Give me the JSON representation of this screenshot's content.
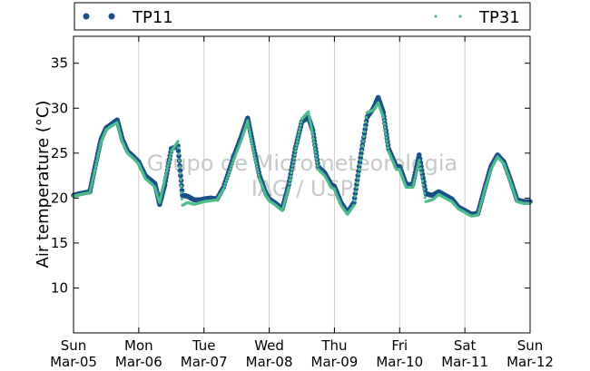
{
  "chart_data": {
    "type": "scatter",
    "ylabel": "Air temperature (°C)",
    "xlabel": "",
    "ylim": [
      5,
      38
    ],
    "xlim": [
      0,
      7
    ],
    "yticks": [
      10,
      15,
      20,
      25,
      30,
      35
    ],
    "x_tick_labels": [
      {
        "x": 0,
        "day": "Sun",
        "date": "Mar-05"
      },
      {
        "x": 1,
        "day": "Mon",
        "date": "Mar-06"
      },
      {
        "x": 2,
        "day": "Tue",
        "date": "Mar-07"
      },
      {
        "x": 3,
        "day": "Wed",
        "date": "Mar-08"
      },
      {
        "x": 4,
        "day": "Thu",
        "date": "Mar-09"
      },
      {
        "x": 5,
        "day": "Fri",
        "date": "Mar-10"
      },
      {
        "x": 6,
        "day": "Sat",
        "date": "Mar-11"
      },
      {
        "x": 7,
        "day": "Sun",
        "date": "Mar-12"
      }
    ],
    "grid": "vertical",
    "legend_position": "top",
    "watermark": [
      "Grupo de Micrometeorologia",
      "IAG / USP"
    ],
    "series": [
      {
        "name": "TP11",
        "color": "#1b4f8a",
        "marker": "circle",
        "points": [
          [
            0.0,
            20.3
          ],
          [
            0.1,
            20.5
          ],
          [
            0.25,
            20.7
          ],
          [
            0.33,
            23.5
          ],
          [
            0.42,
            26.5
          ],
          [
            0.5,
            27.8
          ],
          [
            0.58,
            28.2
          ],
          [
            0.67,
            28.7
          ],
          [
            0.75,
            26.5
          ],
          [
            0.83,
            25.2
          ],
          [
            0.92,
            24.6
          ],
          [
            1.0,
            24.0
          ],
          [
            1.1,
            22.5
          ],
          [
            1.25,
            21.6
          ],
          [
            1.32,
            19.3
          ],
          [
            1.4,
            21.5
          ],
          [
            1.5,
            25.5
          ],
          [
            1.6,
            25.8
          ],
          [
            1.67,
            20.3
          ],
          [
            1.75,
            20.2
          ],
          [
            1.85,
            19.8
          ],
          [
            1.95,
            19.8
          ],
          [
            2.0,
            19.9
          ],
          [
            2.1,
            20.0
          ],
          [
            2.2,
            19.9
          ],
          [
            2.3,
            21.2
          ],
          [
            2.45,
            24.5
          ],
          [
            2.58,
            27.0
          ],
          [
            2.67,
            28.9
          ],
          [
            2.75,
            26.0
          ],
          [
            2.85,
            22.5
          ],
          [
            2.95,
            20.5
          ],
          [
            3.0,
            19.9
          ],
          [
            3.1,
            19.4
          ],
          [
            3.2,
            18.8
          ],
          [
            3.3,
            21.5
          ],
          [
            3.4,
            25.5
          ],
          [
            3.5,
            28.5
          ],
          [
            3.6,
            29.0
          ],
          [
            3.67,
            27.5
          ],
          [
            3.75,
            23.5
          ],
          [
            3.85,
            22.8
          ],
          [
            3.95,
            21.5
          ],
          [
            4.0,
            21.3
          ],
          [
            4.1,
            19.5
          ],
          [
            4.2,
            18.4
          ],
          [
            4.3,
            19.5
          ],
          [
            4.4,
            24.5
          ],
          [
            4.5,
            29.0
          ],
          [
            4.6,
            30.0
          ],
          [
            4.67,
            31.2
          ],
          [
            4.75,
            29.5
          ],
          [
            4.83,
            25.5
          ],
          [
            4.95,
            23.5
          ],
          [
            5.0,
            23.5
          ],
          [
            5.1,
            21.5
          ],
          [
            5.2,
            21.5
          ],
          [
            5.3,
            24.8
          ],
          [
            5.4,
            20.5
          ],
          [
            5.5,
            20.3
          ],
          [
            5.6,
            20.7
          ],
          [
            5.7,
            20.3
          ],
          [
            5.8,
            19.9
          ],
          [
            5.9,
            19.0
          ],
          [
            6.0,
            18.6
          ],
          [
            6.1,
            18.2
          ],
          [
            6.2,
            18.3
          ],
          [
            6.3,
            21.0
          ],
          [
            6.4,
            23.5
          ],
          [
            6.5,
            24.8
          ],
          [
            6.6,
            24.0
          ],
          [
            6.7,
            22.0
          ],
          [
            6.8,
            19.8
          ],
          [
            6.9,
            19.6
          ],
          [
            7.0,
            19.6
          ]
        ]
      },
      {
        "name": "TP31",
        "color": "#4dbd8a",
        "marker": "dot",
        "points": [
          [
            0.0,
            20.2
          ],
          [
            0.1,
            20.4
          ],
          [
            0.25,
            20.6
          ],
          [
            0.33,
            23.2
          ],
          [
            0.42,
            26.2
          ],
          [
            0.5,
            27.6
          ],
          [
            0.58,
            28.0
          ],
          [
            0.67,
            28.4
          ],
          [
            0.75,
            26.2
          ],
          [
            0.83,
            25.0
          ],
          [
            0.92,
            24.4
          ],
          [
            1.0,
            23.8
          ],
          [
            1.1,
            22.2
          ],
          [
            1.25,
            21.2
          ],
          [
            1.32,
            19.5
          ],
          [
            1.4,
            22.0
          ],
          [
            1.5,
            25.2
          ],
          [
            1.6,
            26.3
          ],
          [
            1.67,
            19.2
          ],
          [
            1.75,
            19.5
          ],
          [
            1.85,
            19.3
          ],
          [
            1.95,
            19.5
          ],
          [
            2.0,
            19.6
          ],
          [
            2.1,
            19.7
          ],
          [
            2.2,
            19.8
          ],
          [
            2.3,
            21.0
          ],
          [
            2.45,
            24.2
          ],
          [
            2.58,
            26.6
          ],
          [
            2.67,
            28.6
          ],
          [
            2.75,
            25.5
          ],
          [
            2.85,
            22.2
          ],
          [
            2.95,
            20.3
          ],
          [
            3.0,
            19.7
          ],
          [
            3.1,
            19.2
          ],
          [
            3.2,
            18.6
          ],
          [
            3.3,
            21.2
          ],
          [
            3.4,
            25.2
          ],
          [
            3.5,
            28.8
          ],
          [
            3.6,
            29.6
          ],
          [
            3.67,
            27.0
          ],
          [
            3.75,
            23.2
          ],
          [
            3.85,
            22.5
          ],
          [
            3.95,
            21.2
          ],
          [
            4.0,
            21.0
          ],
          [
            4.1,
            19.2
          ],
          [
            4.2,
            18.2
          ],
          [
            4.3,
            19.2
          ],
          [
            4.4,
            24.2
          ],
          [
            4.5,
            29.5
          ],
          [
            4.6,
            29.8
          ],
          [
            4.67,
            30.6
          ],
          [
            4.75,
            29.0
          ],
          [
            4.83,
            25.2
          ],
          [
            4.95,
            23.2
          ],
          [
            5.0,
            23.2
          ],
          [
            5.1,
            21.2
          ],
          [
            5.2,
            21.2
          ],
          [
            5.3,
            24.2
          ],
          [
            5.4,
            19.6
          ],
          [
            5.5,
            19.8
          ],
          [
            5.6,
            20.4
          ],
          [
            5.7,
            20.0
          ],
          [
            5.8,
            19.6
          ],
          [
            5.9,
            18.8
          ],
          [
            6.0,
            18.4
          ],
          [
            6.1,
            18.0
          ],
          [
            6.2,
            18.1
          ],
          [
            6.3,
            20.8
          ],
          [
            6.4,
            23.2
          ],
          [
            6.5,
            24.6
          ],
          [
            6.6,
            23.8
          ],
          [
            6.7,
            21.8
          ],
          [
            6.8,
            19.6
          ],
          [
            6.9,
            19.4
          ],
          [
            7.0,
            19.4
          ]
        ]
      }
    ]
  }
}
